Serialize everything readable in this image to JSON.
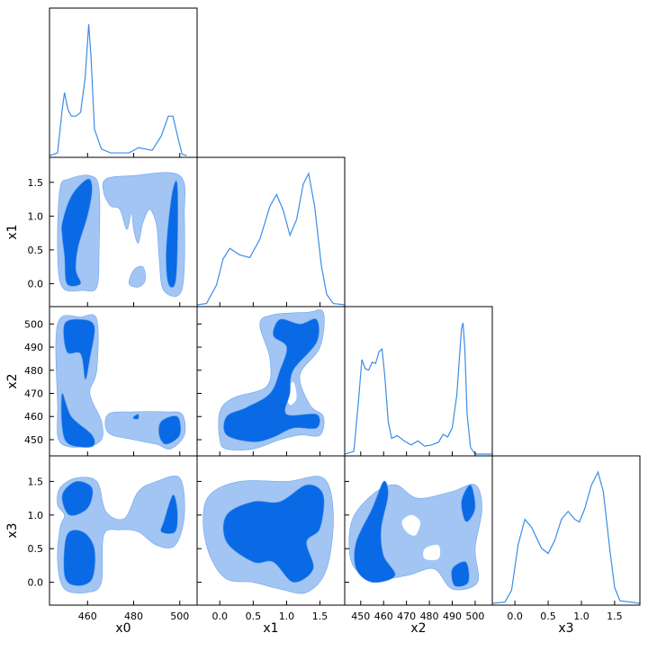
{
  "chart_data": {
    "type": "corner",
    "params": [
      "x0",
      "x1",
      "x2",
      "x3"
    ],
    "lims": [
      [
        443.5,
        507.5
      ],
      [
        -0.34,
        1.87
      ],
      [
        443,
        507.5
      ],
      [
        -0.34,
        1.88
      ]
    ],
    "ticks": [
      [
        460,
        480,
        500
      ],
      [
        {
          "value": 0,
          "label": "0.0"
        },
        {
          "value": 0.5,
          "label": "0.5"
        },
        {
          "value": 1,
          "label": "1.0"
        },
        {
          "value": 1.5,
          "label": "1.5"
        }
      ],
      [
        450,
        460,
        470,
        480,
        490,
        500
      ],
      [
        {
          "value": 0,
          "label": "0.0"
        },
        {
          "value": 0.5,
          "label": "0.5"
        },
        {
          "value": 1,
          "label": "1.0"
        },
        {
          "value": 1.5,
          "label": "1.5"
        }
      ]
    ],
    "line_color": "#3b8de8",
    "diagonal": [
      {
        "x": [
          443.5,
          447,
          449,
          450,
          451.5,
          453,
          455,
          457,
          459,
          460.5,
          461.5,
          463,
          466,
          470,
          478,
          482,
          485,
          488,
          492,
          495,
          497,
          499,
          501,
          503
        ],
        "density": [
          0,
          0.02,
          0.35,
          0.48,
          0.35,
          0.3,
          0.3,
          0.33,
          0.6,
          1.0,
          0.75,
          0.2,
          0.05,
          0.02,
          0.02,
          0.06,
          0.05,
          0.04,
          0.15,
          0.3,
          0.3,
          0.15,
          0.01,
          0
        ]
      },
      {
        "x": [
          -0.34,
          -0.2,
          -0.05,
          0.05,
          0.15,
          0.3,
          0.45,
          0.6,
          0.75,
          0.85,
          0.95,
          1.05,
          1.15,
          1.25,
          1.33,
          1.42,
          1.52,
          1.6,
          1.7,
          1.87
        ],
        "density": [
          0,
          0.01,
          0.15,
          0.35,
          0.43,
          0.38,
          0.36,
          0.5,
          0.75,
          0.84,
          0.72,
          0.53,
          0.65,
          0.92,
          1.0,
          0.75,
          0.3,
          0.08,
          0.01,
          0
        ]
      },
      {
        "x": [
          443,
          447,
          449,
          450.5,
          452,
          453.5,
          455,
          456.5,
          458,
          459.3,
          460.5,
          462,
          463.5,
          466,
          469,
          472,
          475,
          478,
          481,
          484,
          486,
          488,
          490,
          492,
          494,
          494.7,
          495.5,
          496.5,
          498,
          500,
          507.5
        ],
        "density": [
          0,
          0.02,
          0.4,
          0.72,
          0.65,
          0.64,
          0.7,
          0.69,
          0.78,
          0.8,
          0.6,
          0.25,
          0.12,
          0.14,
          0.1,
          0.07,
          0.1,
          0.06,
          0.07,
          0.09,
          0.15,
          0.13,
          0.2,
          0.45,
          0.95,
          1.0,
          0.8,
          0.3,
          0.05,
          0,
          0
        ]
      },
      {
        "x": [
          -0.34,
          -0.15,
          -0.05,
          0.05,
          0.15,
          0.25,
          0.4,
          0.5,
          0.6,
          0.7,
          0.8,
          0.9,
          0.97,
          1.05,
          1.15,
          1.25,
          1.33,
          1.43,
          1.5,
          1.58,
          1.88
        ],
        "density": [
          0,
          0.01,
          0.1,
          0.45,
          0.64,
          0.58,
          0.42,
          0.38,
          0.48,
          0.64,
          0.7,
          0.64,
          0.62,
          0.72,
          0.9,
          1.0,
          0.85,
          0.4,
          0.12,
          0.02,
          0
        ]
      }
    ],
    "panels": [
      {
        "regions": [
          {
            "color": "#a3c5f3",
            "x": [
              448,
              452,
              461,
              465,
              465,
              464,
              458,
              449,
              447
            ],
            "y": [
              1.4,
              1.55,
              1.6,
              1.4,
              0.5,
              -0.05,
              -0.1,
              -0.05,
              0.5
            ]
          },
          {
            "color": "#a3c5f3",
            "x": [
              468,
              480,
              500,
              502,
              501,
              493,
              491,
              490,
              487,
              484,
              482,
              480,
              479,
              477,
              474,
              470,
              467
            ],
            "y": [
              1.55,
              1.6,
              1.6,
              1.0,
              -0.08,
              -0.1,
              0.4,
              0.85,
              1.1,
              0.9,
              0.6,
              0.8,
              1.05,
              0.8,
              1.1,
              1.15,
              1.35
            ]
          },
          {
            "color": "#a3c5f3",
            "x": [
              480,
              484,
              485,
              482,
              478
            ],
            "y": [
              0.2,
              0.25,
              0.05,
              -0.05,
              0.0
            ]
          },
          {
            "color": "#0a6ae6",
            "x": [
              449,
              453,
              460,
              462,
              460,
              456,
              455,
              457,
              451,
              450,
              449
            ],
            "y": [
              0.9,
              1.3,
              1.55,
              1.4,
              1.0,
              0.55,
              0.2,
              0.0,
              0.0,
              0.4,
              0.7
            ]
          },
          {
            "color": "#0a6ae6",
            "x": [
              497,
              499,
              499,
              498,
              495,
              494,
              495
            ],
            "y": [
              1.4,
              1.45,
              0.5,
              0.0,
              0.0,
              0.4,
              0.9
            ]
          }
        ]
      },
      {
        "regions": [
          {
            "color": "#a3c5f3",
            "x": [
              447,
              457,
              464,
              464,
              461,
              466,
              466,
              459,
              448,
              447
            ],
            "y": [
              500,
              503,
              502,
              480,
              470,
              458,
              450,
              447,
              449,
              465
            ]
          },
          {
            "color": "#a3c5f3",
            "x": [
              469,
              480,
              494,
              501,
              502,
              496,
              490,
              480,
              469
            ],
            "y": [
              461,
              462,
              462,
              461,
              452,
              446,
              448,
              450,
              453
            ]
          },
          {
            "color": "#0a6ae6",
            "x": [
              450,
              457,
              463,
              461,
              459,
              457,
              451
            ],
            "y": [
              500,
              502,
              499,
              485,
              476,
              487,
              488
            ]
          },
          {
            "color": "#0a6ae6",
            "x": [
              449,
              453,
              462,
              462,
              452,
              449
            ],
            "y": [
              470,
              460,
              452,
              447,
              448,
              455
            ]
          },
          {
            "color": "#0a6ae6",
            "x": [
              492,
              499,
              500,
              494,
              491
            ],
            "y": [
              458,
              460,
              452,
              448,
              452
            ]
          },
          {
            "color": "#0a6ae6",
            "x": [
              480,
              482,
              482,
              480
            ],
            "y": [
              460,
              461,
              459,
              459
            ]
          }
        ]
      },
      {
        "regions": [
          {
            "color": "#a3c5f3",
            "x": [
              0.0,
              0.0,
              0.2,
              0.7,
              0.75,
              0.6,
              0.8,
              1.3,
              1.55,
              1.5,
              1.2,
              1.35,
              1.55,
              1.5,
              1.2,
              0.9,
              0.5,
              0.1
            ],
            "y": [
              450,
              462,
              468,
              473,
              485,
              500,
              504,
              505,
              505,
              490,
              478,
              465,
              460,
              452,
              452,
              450,
              446,
              446
            ]
          },
          {
            "color": "#ffffff",
            "x": [
              1.0,
              1.1,
              1.15,
              1.05
            ],
            "y": [
              470,
              475,
              468,
              465
            ]
          },
          {
            "color": "#0a6ae6",
            "x": [
              0.1,
              0.1,
              0.4,
              0.75,
              0.9,
              1.0,
              0.8,
              0.9,
              1.2,
              1.45,
              1.45,
              1.1,
              1.05,
              1.0,
              1.45,
              1.45,
              1.1,
              0.8,
              0.5
            ],
            "y": [
              452,
              460,
              464,
              470,
              480,
              490,
              495,
              502,
              500,
              502,
              492,
              480,
              470,
              461,
              461,
              455,
              455,
              451,
              449
            ]
          }
        ]
      },
      {
        "regions": [
          {
            "color": "#a3c5f3",
            "x": [
              448,
              455,
              464,
              468,
              476,
              482,
              490,
              500,
              502,
              498,
              490,
              482,
              474,
              467,
              466,
              460,
              450,
              447,
              448,
              450,
              447
            ],
            "y": [
              1.4,
              1.55,
              1.5,
              1.05,
              0.95,
              1.35,
              1.5,
              1.55,
              1.0,
              0.55,
              0.55,
              0.75,
              0.78,
              0.7,
              0.0,
              -0.15,
              -0.1,
              0.3,
              0.8,
              1.0,
              1.15
            ]
          },
          {
            "color": "#0a6ae6",
            "x": [
              449,
              455,
              462,
              460,
              452
            ],
            "y": [
              1.3,
              1.5,
              1.4,
              1.1,
              1.0
            ]
          },
          {
            "color": "#0a6ae6",
            "x": [
              451,
              458,
              463,
              462,
              455,
              450
            ],
            "y": [
              0.7,
              0.75,
              0.5,
              0.05,
              -0.05,
              0.1
            ]
          },
          {
            "color": "#0a6ae6",
            "x": [
              493,
              497,
              499,
              498,
              492
            ],
            "y": [
              0.9,
              1.3,
              1.05,
              0.75,
              0.75
            ]
          }
        ]
      },
      {
        "regions": [
          {
            "color": "#a3c5f3",
            "x": [
              -0.15,
              0.3,
              1.0,
              1.55,
              1.7,
              1.6,
              1.3,
              0.9,
              0.5,
              0.1,
              -0.15,
              -0.25
            ],
            "y": [
              1.3,
              1.5,
              1.5,
              1.55,
              1.0,
              0.2,
              -0.15,
              -0.1,
              0.0,
              0.05,
              0.4,
              0.9
            ]
          },
          {
            "color": "#0a6ae6",
            "x": [
              0.1,
              0.5,
              0.9,
              1.3,
              1.55,
              1.5,
              1.3,
              1.4,
              1.1,
              0.8,
              0.5,
              0.1
            ],
            "y": [
              1.0,
              1.2,
              1.2,
              1.45,
              1.3,
              0.8,
              0.6,
              0.2,
              0.0,
              0.3,
              0.3,
              0.6
            ]
          }
        ]
      },
      {
        "regions": [
          {
            "color": "#a3c5f3",
            "x": [
              446,
              455,
              465,
              475,
              490,
              500,
              503,
              500,
              501,
              490,
              482,
              470,
              455,
              446
            ],
            "y": [
              0.9,
              1.3,
              1.45,
              1.25,
              1.35,
              1.45,
              1.1,
              0.5,
              0.0,
              -0.1,
              0.2,
              0.1,
              0.05,
              0.3
            ]
          },
          {
            "color": "#ffffff",
            "x": [
              468,
              472,
              476,
              474,
              470
            ],
            "y": [
              0.9,
              1.0,
              0.9,
              0.7,
              0.75
            ]
          },
          {
            "color": "#ffffff",
            "x": [
              478,
              484,
              484,
              478
            ],
            "y": [
              0.5,
              0.55,
              0.35,
              0.35
            ]
          },
          {
            "color": "#0a6ae6",
            "x": [
              448,
              455,
              460,
              462,
              459,
              460,
              465,
              455,
              448
            ],
            "y": [
              0.6,
              1.1,
              1.5,
              1.3,
              0.8,
              0.4,
              0.1,
              0.0,
              0.2
            ]
          },
          {
            "color": "#0a6ae6",
            "x": [
              494,
              498,
              500,
              496
            ],
            "y": [
              1.2,
              1.45,
              1.1,
              0.9
            ]
          },
          {
            "color": "#0a6ae6",
            "x": [
              490,
              496,
              497,
              491
            ],
            "y": [
              0.2,
              0.3,
              0.0,
              -0.05
            ]
          }
        ]
      }
    ]
  }
}
